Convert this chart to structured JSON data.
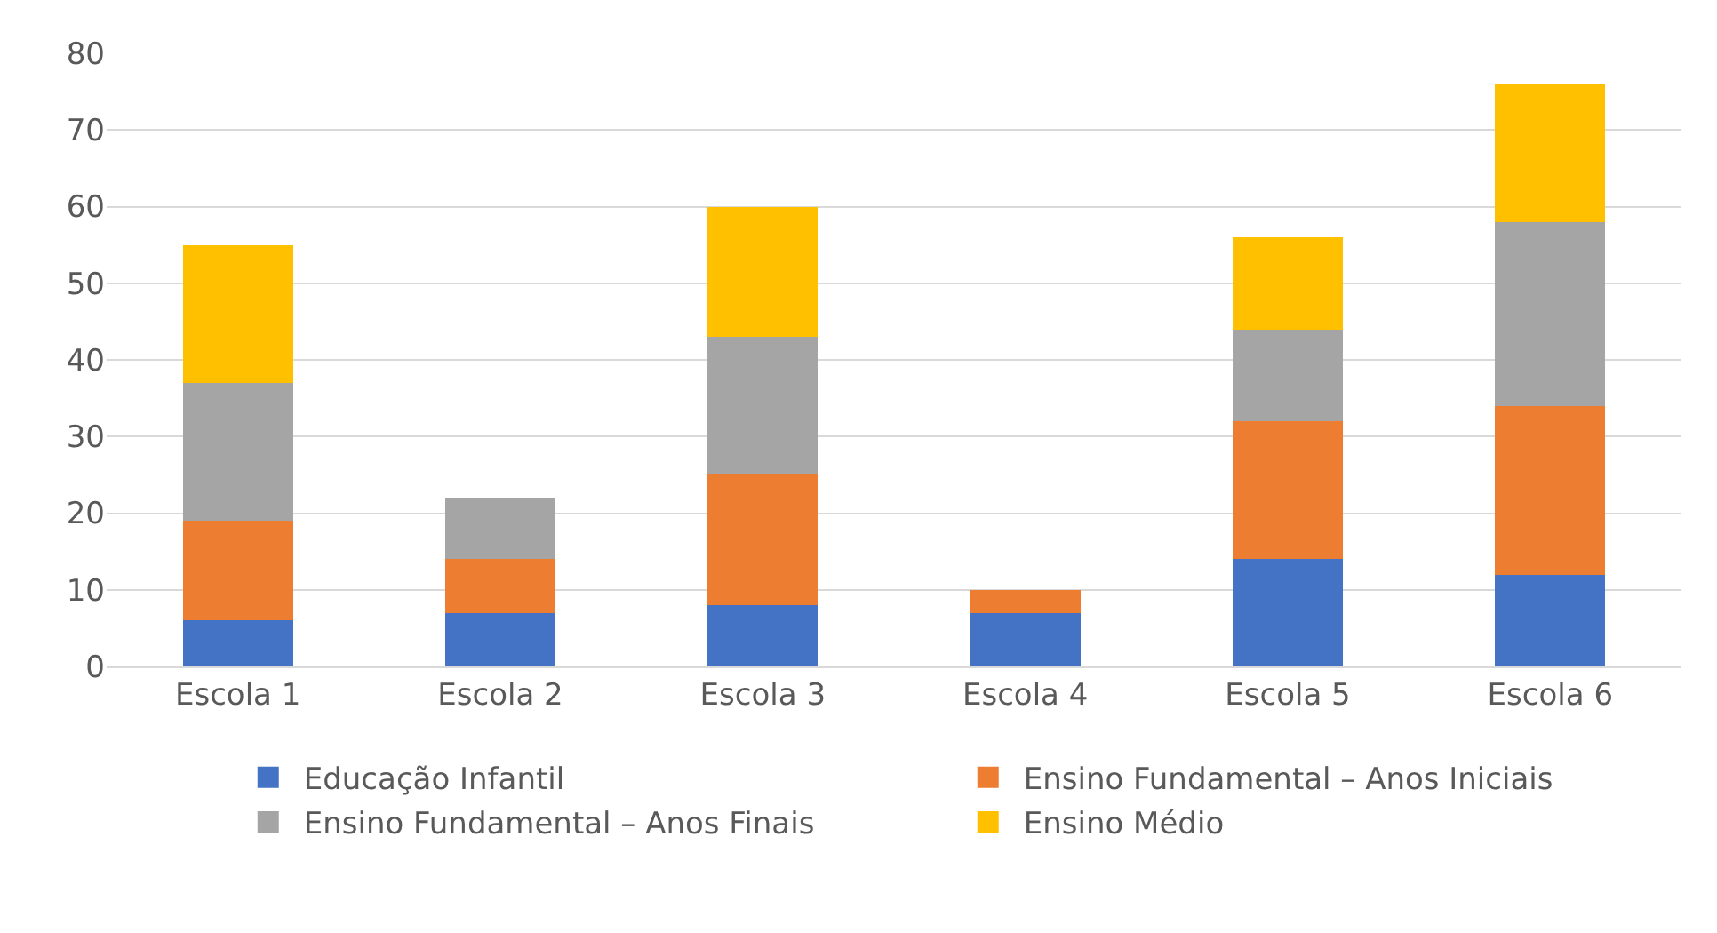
{
  "chart_data": {
    "type": "bar",
    "stacked": true,
    "categories": [
      "Escola 1",
      "Escola 2",
      "Escola 3",
      "Escola 4",
      "Escola 5",
      "Escola 6"
    ],
    "series": [
      {
        "name": "Educação Infantil",
        "color": "#4472c4",
        "values": [
          6,
          7,
          8,
          7,
          14,
          12
        ]
      },
      {
        "name": "Ensino Fundamental – Anos Iniciais",
        "color": "#ed7d31",
        "values": [
          13,
          7,
          17,
          3,
          18,
          22
        ]
      },
      {
        "name": "Ensino Fundamental – Anos Finais",
        "color": "#a5a5a5",
        "values": [
          18,
          8,
          18,
          null,
          12,
          24
        ]
      },
      {
        "name": "Ensino Médio",
        "color": "#ffc000",
        "values": [
          18,
          null,
          17,
          null,
          12,
          18
        ]
      }
    ],
    "ylim": [
      0,
      80
    ],
    "yticks": [
      0,
      10,
      20,
      30,
      40,
      50,
      60,
      70,
      80
    ],
    "grid": "y",
    "legend": "bottom"
  }
}
